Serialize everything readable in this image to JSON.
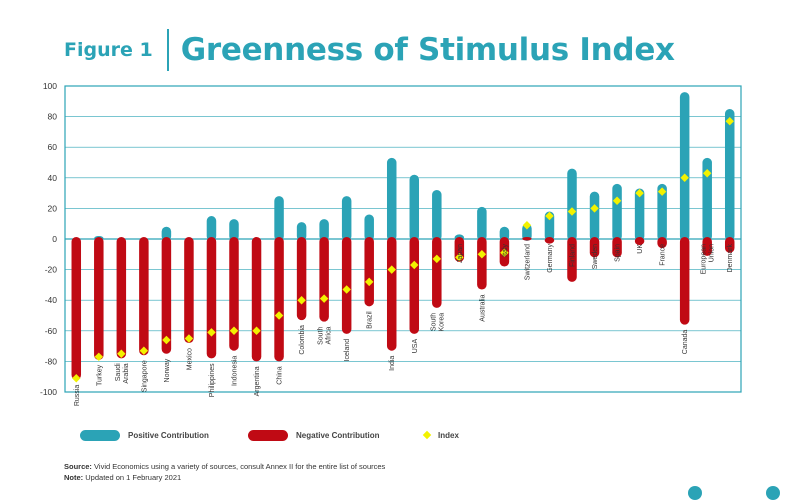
{
  "header": {
    "figure_label": "Figure 1",
    "title": "Greenness of Stimulus Index"
  },
  "legend": {
    "positive": "Positive Contribution",
    "negative": "Negative Contribution",
    "index": "Index"
  },
  "footnote": {
    "source_label": "Source:",
    "source_text": "Vivid Economics using a variety of sources, consult Annex II for the entire list of sources",
    "note_label": "Note:",
    "note_text": "Updated on 1 February 2021"
  },
  "colors": {
    "positive": "#2ba3b6",
    "negative": "#c00a14",
    "index": "#f2f200",
    "title": "#2ba3b6",
    "frame": "#2ba3b6"
  },
  "chart_data": {
    "type": "bar",
    "title": "Greenness of Stimulus Index",
    "ylim": [
      -100,
      100
    ],
    "yticks": [
      100,
      80,
      60,
      40,
      20,
      0,
      -20,
      -40,
      -60,
      -80,
      -100
    ],
    "grid": true,
    "legend_position": "bottom",
    "categories": [
      "Russia",
      "Turkey",
      "Saudi Arabia",
      "Singapore",
      "Norway",
      "Mexico",
      "Philippines",
      "Indonesia",
      "Argentina",
      "China",
      "Colombia",
      "South Africa",
      "Iceland",
      "Brazil",
      "India",
      "USA",
      "South Korea",
      "Japan",
      "Australia",
      "Italy",
      "Switzerland",
      "Germany",
      "Finland",
      "Sweden",
      "Spain",
      "UK",
      "France",
      "Canada",
      "European Union",
      "Denmark"
    ],
    "series": [
      {
        "name": "Positive Contribution",
        "values": [
          0,
          2,
          0,
          0,
          8,
          0,
          15,
          13,
          0,
          28,
          11,
          13,
          28,
          16,
          53,
          42,
          32,
          3,
          21,
          8,
          10,
          18,
          46,
          31,
          36,
          33,
          36,
          96,
          53,
          85
        ]
      },
      {
        "name": "Negative Contribution",
        "values": [
          -92,
          -79,
          -78,
          -76,
          -75,
          -68,
          -78,
          -73,
          -80,
          -80,
          -53,
          -54,
          -62,
          -44,
          -73,
          -62,
          -45,
          -15,
          -33,
          -18,
          -1,
          -3,
          -28,
          -12,
          -12,
          -4,
          -6,
          -56,
          -11,
          -9
        ]
      },
      {
        "name": "Index",
        "values": [
          -91,
          -77,
          -75,
          -73,
          -66,
          -65,
          -61,
          -60,
          -60,
          -50,
          -40,
          -39,
          -33,
          -28,
          -20,
          -17,
          -13,
          -12,
          -10,
          -9,
          9,
          15,
          18,
          20,
          25,
          30,
          31,
          40,
          43,
          77
        ]
      }
    ]
  }
}
